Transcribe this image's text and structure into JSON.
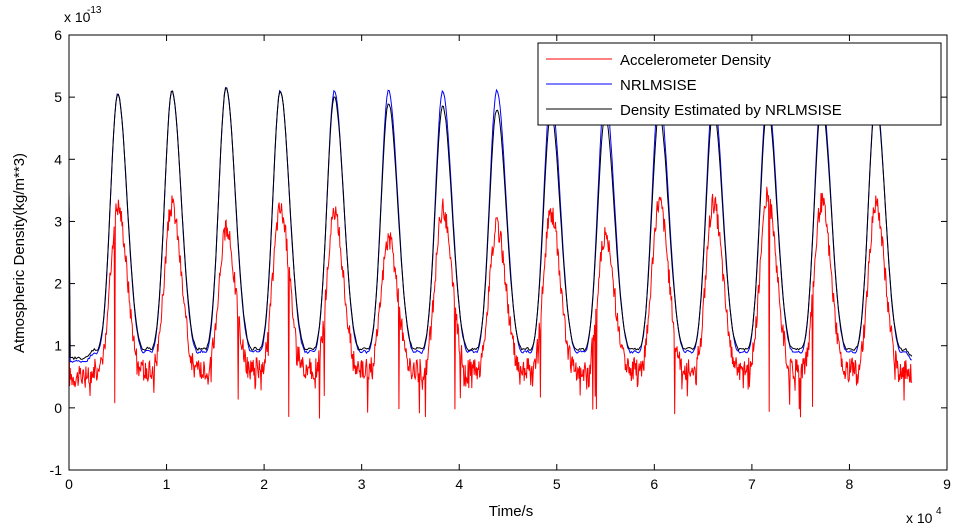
{
  "chart_data": {
    "type": "line",
    "title": "",
    "xlabel": "Time/s",
    "ylabel": "Atmospheric Density(kg/m**3)",
    "x_scale_label": "x 10",
    "x_scale_exp": "4",
    "y_scale_label": "x 10",
    "y_scale_exp": "-13",
    "xlim": [
      0,
      9
    ],
    "ylim": [
      -1,
      6
    ],
    "xticks": [
      "0",
      "1",
      "2",
      "3",
      "4",
      "5",
      "6",
      "7",
      "8",
      "9"
    ],
    "yticks": [
      "-1",
      "0",
      "1",
      "2",
      "3",
      "4",
      "5",
      "6"
    ],
    "grid": false,
    "legend_position": "top-right",
    "x_end": 8.64,
    "orbit_period": 0.555,
    "first_peak": 0.5,
    "series": [
      {
        "name": "Accelerometer Density",
        "color": "#ff0000",
        "peaks": [
          3.25,
          3.25,
          2.85,
          3.2,
          3.1,
          2.7,
          3.2,
          2.9,
          3.15,
          2.75,
          3.3,
          3.3,
          3.4,
          3.3,
          3.25
        ],
        "baseline": 0.5,
        "trough_min": -0.2
      },
      {
        "name": "NRLMSISE",
        "color": "#0000ff",
        "peaks": [
          5.05,
          5.1,
          5.15,
          5.1,
          5.1,
          5.1,
          5.1,
          5.1,
          5.05,
          5.05,
          5.05,
          5.05,
          5.05,
          5.05,
          5.0
        ],
        "baseline": 0.75
      },
      {
        "name": "Density Estimated by NRLMSISE",
        "color": "#000000",
        "peaks": [
          5.05,
          5.1,
          5.15,
          5.1,
          5.0,
          4.9,
          4.85,
          4.8,
          4.75,
          4.7,
          4.75,
          4.8,
          4.85,
          4.9,
          4.95
        ],
        "baseline": 0.8
      }
    ]
  }
}
